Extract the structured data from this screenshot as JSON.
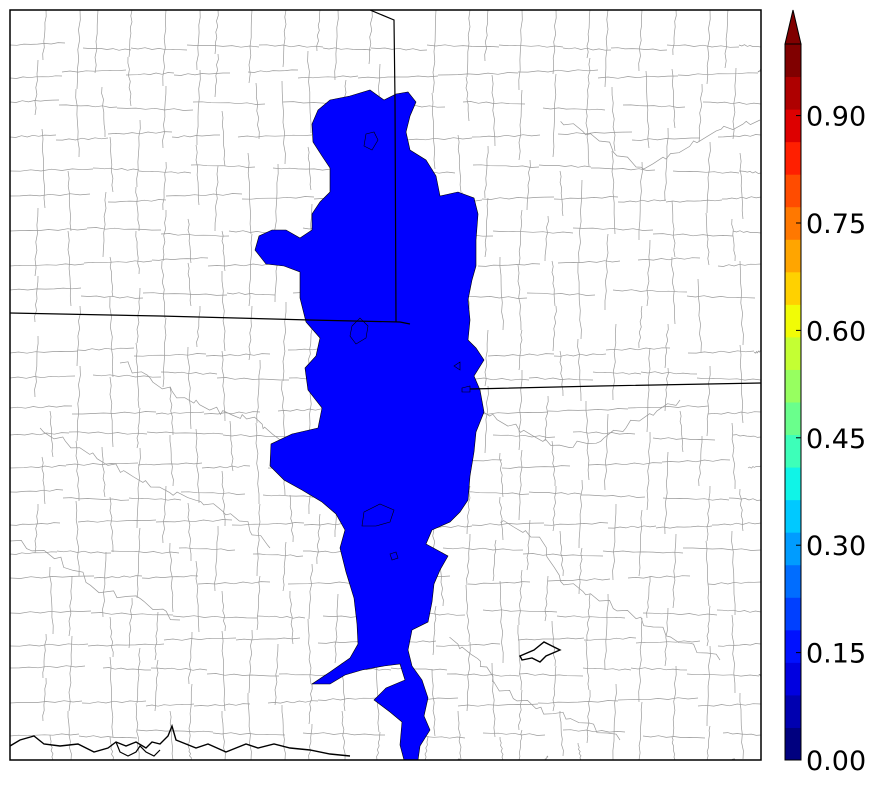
{
  "colorbar": {
    "ticks": [
      "0.00",
      "0.15",
      "0.30",
      "0.45",
      "0.60",
      "0.75",
      "0.90"
    ],
    "range": [
      0.0,
      1.0
    ],
    "extend": "max",
    "colormap": "jet",
    "colors": [
      "#00007f",
      "#0000b0",
      "#0000e0",
      "#0011ff",
      "#0040ff",
      "#006dff",
      "#009cff",
      "#00c9ff",
      "#10f4e7",
      "#3dffb9",
      "#6aff8c",
      "#97ff60",
      "#c4ff33",
      "#f1fc06",
      "#ffd100",
      "#ffa500",
      "#ff7800",
      "#ff4c00",
      "#ff1f00",
      "#dd0000",
      "#ae0000",
      "#800000"
    ]
  },
  "field": {
    "fill_color": "#0000ff",
    "value_bin": "0.05-0.10"
  },
  "map": {
    "border_color": "#000000",
    "county_line_color": "#9a9a9a"
  }
}
